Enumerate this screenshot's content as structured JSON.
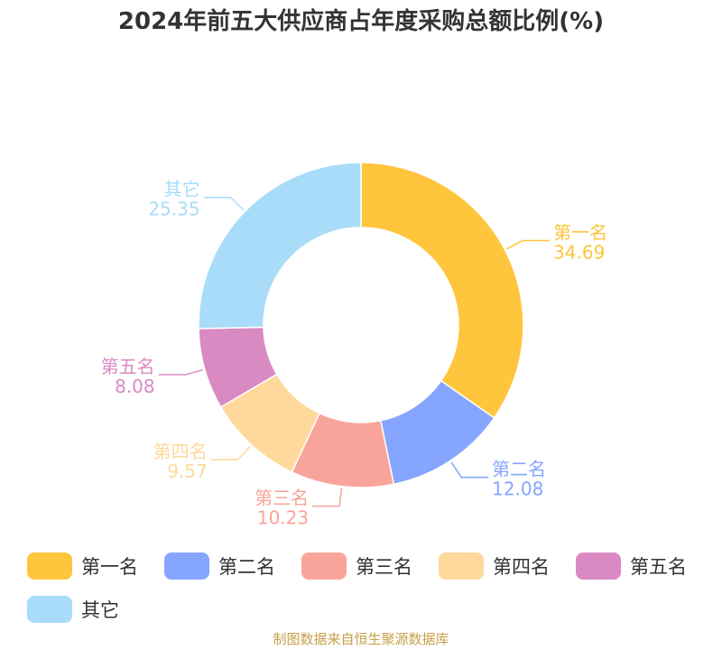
{
  "chart_data": {
    "type": "pie",
    "variant": "donut",
    "title": "2024年前五大供应商占年度采购总额比例(%)",
    "categories": [
      "第一名",
      "第二名",
      "第三名",
      "第四名",
      "第五名",
      "其它"
    ],
    "values": [
      34.69,
      12.08,
      10.23,
      9.57,
      8.08,
      25.35
    ],
    "value_labels": [
      "34.69",
      "12.08",
      "10.23",
      "9.57",
      "8.08",
      "25.35"
    ],
    "colors": [
      "#FFC53D",
      "#85A5FF",
      "#F9A49A",
      "#FFD89B",
      "#DA8AC3",
      "#A8DCF9"
    ],
    "legend_position": "bottom"
  },
  "source_note": "制图数据来自恒生聚源数据库"
}
